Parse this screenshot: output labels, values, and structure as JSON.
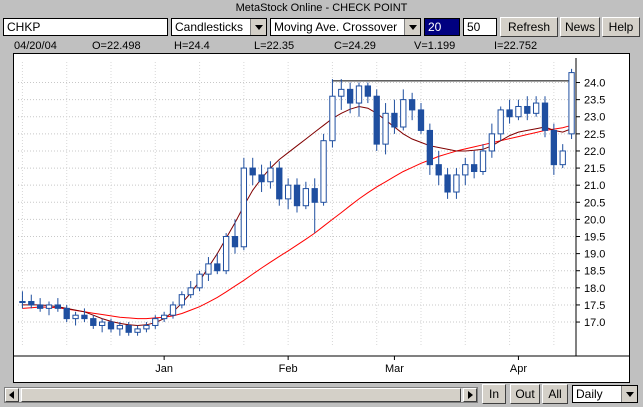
{
  "window": {
    "title": "MetaStock Online - CHECK POINT"
  },
  "toolbar": {
    "symbol": "CHKP",
    "chart_style": "Candlesticks",
    "indicator": "Moving Ave. Crossover",
    "period1": "20",
    "period2": "50",
    "refresh_label": "Refresh",
    "news_label": "News",
    "help_label": "Help"
  },
  "quote": {
    "date": "04/20/04",
    "open": "O=22.498",
    "high": "H=24.4",
    "low": "L=22.35",
    "close": "C=24.29",
    "volume": "V=1.199",
    "indicator": "I=22.752"
  },
  "bottom": {
    "in_label": "In",
    "out_label": "Out",
    "all_label": "All",
    "interval": "Daily"
  },
  "chart_data": {
    "type": "candlestick",
    "x_labels": [
      "Jan",
      "Feb",
      "Mar",
      "Apr"
    ],
    "y_ticks": [
      17.0,
      17.5,
      18.0,
      18.5,
      19.0,
      19.5,
      20.0,
      20.5,
      21.0,
      21.5,
      22.0,
      22.5,
      23.0,
      23.5,
      24.0
    ],
    "y_tick_labels": [
      "17.0",
      "17.5",
      "18.0",
      "18.5",
      "19.0",
      "19.5",
      "20.0",
      "20.5",
      "21.0",
      "21.5",
      "22.0",
      "22.5",
      "23.0",
      "23.5",
      "24.0"
    ],
    "ylim": [
      16.3,
      24.6
    ],
    "grid": true,
    "up_color": "#ffffff",
    "down_color": "#1f4fa0",
    "candles": [
      [
        17.6,
        17.9,
        17.4,
        17.6
      ],
      [
        17.6,
        17.8,
        17.4,
        17.5
      ],
      [
        17.5,
        17.7,
        17.3,
        17.4
      ],
      [
        17.4,
        17.6,
        17.2,
        17.5
      ],
      [
        17.5,
        17.7,
        17.3,
        17.4
      ],
      [
        17.4,
        17.5,
        17.0,
        17.1
      ],
      [
        17.1,
        17.3,
        16.9,
        17.2
      ],
      [
        17.2,
        17.4,
        17.0,
        17.1
      ],
      [
        17.1,
        17.2,
        16.8,
        16.9
      ],
      [
        16.9,
        17.1,
        16.7,
        17.0
      ],
      [
        17.0,
        17.1,
        16.7,
        16.8
      ],
      [
        16.8,
        17.0,
        16.6,
        16.9
      ],
      [
        16.9,
        17.0,
        16.6,
        16.7
      ],
      [
        16.7,
        16.9,
        16.6,
        16.8
      ],
      [
        16.8,
        17.0,
        16.7,
        16.9
      ],
      [
        16.9,
        17.2,
        16.8,
        17.1
      ],
      [
        17.1,
        17.3,
        17.0,
        17.2
      ],
      [
        17.2,
        17.6,
        17.1,
        17.5
      ],
      [
        17.5,
        17.9,
        17.4,
        17.8
      ],
      [
        17.8,
        18.2,
        17.7,
        18.0
      ],
      [
        18.0,
        18.5,
        17.9,
        18.4
      ],
      [
        18.4,
        18.9,
        18.2,
        18.7
      ],
      [
        18.7,
        19.0,
        18.4,
        18.5
      ],
      [
        18.5,
        19.6,
        18.4,
        19.5
      ],
      [
        19.5,
        20.0,
        19.0,
        19.2
      ],
      [
        19.2,
        21.8,
        19.1,
        21.5
      ],
      [
        21.5,
        21.8,
        21.0,
        21.3
      ],
      [
        21.3,
        21.6,
        20.8,
        21.1
      ],
      [
        21.1,
        21.7,
        20.9,
        21.5
      ],
      [
        21.5,
        21.7,
        20.4,
        20.6
      ],
      [
        20.6,
        21.2,
        20.3,
        21.0
      ],
      [
        21.0,
        21.2,
        20.2,
        20.4
      ],
      [
        20.4,
        21.1,
        20.3,
        20.9
      ],
      [
        20.9,
        21.2,
        19.6,
        20.5
      ],
      [
        20.5,
        22.5,
        20.4,
        22.3
      ],
      [
        22.3,
        24.1,
        22.1,
        23.6
      ],
      [
        23.6,
        24.1,
        23.2,
        23.8
      ],
      [
        23.8,
        24.0,
        23.1,
        23.4
      ],
      [
        23.4,
        24.0,
        23.0,
        23.9
      ],
      [
        23.9,
        24.0,
        23.4,
        23.6
      ],
      [
        23.6,
        23.8,
        22.0,
        22.2
      ],
      [
        22.2,
        23.4,
        21.9,
        23.1
      ],
      [
        23.1,
        23.5,
        22.5,
        22.7
      ],
      [
        22.7,
        23.8,
        22.6,
        23.5
      ],
      [
        23.5,
        23.7,
        22.9,
        23.2
      ],
      [
        23.2,
        23.4,
        22.5,
        22.6
      ],
      [
        22.6,
        22.8,
        21.3,
        21.6
      ],
      [
        21.6,
        22.0,
        21.0,
        21.3
      ],
      [
        21.3,
        21.5,
        20.6,
        20.8
      ],
      [
        20.8,
        21.5,
        20.6,
        21.3
      ],
      [
        21.3,
        21.8,
        21.0,
        21.6
      ],
      [
        21.6,
        22.0,
        21.2,
        21.4
      ],
      [
        21.4,
        22.2,
        21.3,
        22.0
      ],
      [
        22.0,
        22.8,
        21.8,
        22.5
      ],
      [
        22.5,
        23.3,
        22.3,
        23.2
      ],
      [
        23.2,
        23.5,
        22.8,
        23.0
      ],
      [
        23.0,
        23.5,
        22.9,
        23.3
      ],
      [
        23.3,
        23.6,
        22.9,
        23.1
      ],
      [
        23.1,
        23.6,
        23.0,
        23.4
      ],
      [
        23.4,
        23.6,
        22.4,
        22.6
      ],
      [
        22.6,
        22.8,
        21.3,
        21.6
      ],
      [
        21.6,
        22.2,
        21.5,
        22.0
      ],
      [
        22.5,
        24.4,
        22.35,
        24.29
      ]
    ],
    "ma_short": [
      17.5,
      17.5,
      17.5,
      17.48,
      17.45,
      17.4,
      17.35,
      17.3,
      17.2,
      17.1,
      17.02,
      16.96,
      16.92,
      16.9,
      16.92,
      16.98,
      17.1,
      17.3,
      17.55,
      17.85,
      18.2,
      18.6,
      19.0,
      19.45,
      19.9,
      20.4,
      20.85,
      21.2,
      21.5,
      21.75,
      21.95,
      22.15,
      22.35,
      22.55,
      22.75,
      22.95,
      23.1,
      23.22,
      23.3,
      23.25,
      23.1,
      22.9,
      22.7,
      22.5,
      22.35,
      22.25,
      22.15,
      22.1,
      22.05,
      22.0,
      22.0,
      22.02,
      22.05,
      22.15,
      22.3,
      22.45,
      22.55,
      22.6,
      22.65,
      22.7,
      22.6,
      22.55,
      22.65
    ],
    "ma_long": [
      17.4,
      17.42,
      17.44,
      17.43,
      17.42,
      17.38,
      17.34,
      17.3,
      17.26,
      17.22,
      17.18,
      17.14,
      17.12,
      17.1,
      17.1,
      17.12,
      17.14,
      17.18,
      17.25,
      17.35,
      17.45,
      17.58,
      17.72,
      17.88,
      18.05,
      18.22,
      18.4,
      18.58,
      18.75,
      18.92,
      19.08,
      19.25,
      19.42,
      19.6,
      19.8,
      20.0,
      20.2,
      20.4,
      20.6,
      20.78,
      20.95,
      21.1,
      21.25,
      21.4,
      21.52,
      21.64,
      21.74,
      21.84,
      21.92,
      22.0,
      22.06,
      22.12,
      22.18,
      22.24,
      22.3,
      22.36,
      22.42,
      22.48,
      22.54,
      22.6,
      22.64,
      22.68,
      22.75
    ],
    "resistance": 24.05,
    "ma_short_color": "#800000",
    "ma_long_color": "#ff0000"
  }
}
